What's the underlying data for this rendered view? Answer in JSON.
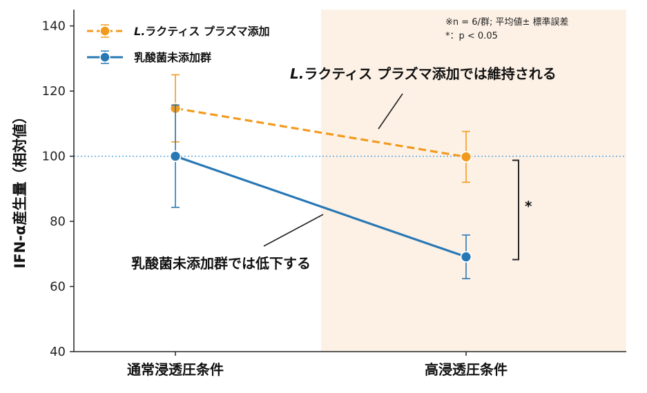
{
  "chart_data": {
    "type": "line",
    "categories": [
      "通常浸透圧条件",
      "高浸透圧条件"
    ],
    "ylabel": "IFN-α産生量（相対値）",
    "ylim": [
      40,
      145
    ],
    "yticks": [
      40,
      60,
      80,
      100,
      120,
      140
    ],
    "reference_line": 100,
    "shaded_category": "高浸透圧条件",
    "series": [
      {
        "name": "L.ラクティス プラズマ添加",
        "name_italic_part": "L.",
        "name_rest": "ラクティス プラズマ添加",
        "values": [
          114.7,
          99.8
        ],
        "errors": [
          10.3,
          7.8
        ],
        "color": "#F29A1D",
        "style": "dashed"
      },
      {
        "name": "乳酸菌未添加群",
        "values": [
          100,
          69.1
        ],
        "errors": [
          15.7,
          6.7
        ],
        "color": "#2878B5",
        "style": "solid"
      }
    ],
    "annotations": {
      "upper_italic": "L.",
      "upper_rest": "ラクティス プラズマ添加では維持される",
      "lower": "乳酸菌未添加群では低下する",
      "significance": "*"
    },
    "notes": [
      "※n = 6/群; 平均値± 標準誤差",
      "*：p < 0.05"
    ]
  },
  "colors": {
    "shade": "#FDF1E6",
    "axis": "#222222",
    "ref_line": "#5AA7E0"
  }
}
